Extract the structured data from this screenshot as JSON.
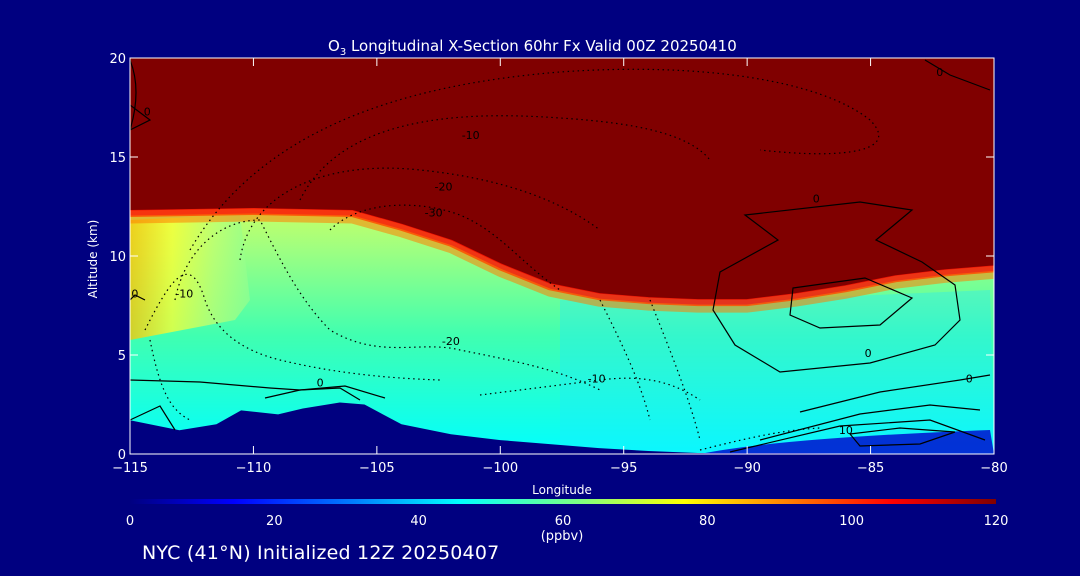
{
  "chart_data": {
    "type": "heatmap",
    "title_main": "O",
    "title_sub": "3",
    "title_rest": " Longitudinal X-Section 60hr  Fx Valid 00Z 20250410",
    "xlabel": "Longitude",
    "ylabel": "Altitude (km)",
    "xlim": [
      -115,
      -80
    ],
    "ylim": [
      0,
      20
    ],
    "x_ticks": [
      -115,
      -110,
      -105,
      -100,
      -95,
      -90,
      -85,
      -80
    ],
    "x_tick_labels": [
      "−115",
      "−110",
      "−105",
      "−100",
      "−95",
      "−90",
      "−85",
      "−80"
    ],
    "y_ticks": [
      0,
      5,
      10,
      15,
      20
    ],
    "y_tick_labels": [
      "0",
      "5",
      "10",
      "15",
      "20"
    ],
    "colorbar": {
      "min": 0,
      "max": 120,
      "ticks": [
        0,
        20,
        40,
        60,
        80,
        100,
        120
      ],
      "tick_labels": [
        "0",
        "20",
        "40",
        "60",
        "80",
        "100",
        "120"
      ],
      "unit": "(ppbv)",
      "colors": [
        "#000080",
        "#0000ff",
        "#0080ff",
        "#00ffff",
        "#80ff80",
        "#ffff00",
        "#ff8000",
        "#ff0000",
        "#800000"
      ]
    },
    "tropopause_km": [
      [
        -115,
        12.3
      ],
      [
        -110,
        12.4
      ],
      [
        -106,
        12.3
      ],
      [
        -104,
        11.6
      ],
      [
        -102,
        10.8
      ],
      [
        -100,
        9.6
      ],
      [
        -98,
        8.6
      ],
      [
        -96,
        8.1
      ],
      [
        -94,
        7.9
      ],
      [
        -92,
        7.8
      ],
      [
        -90,
        7.8
      ],
      [
        -88,
        8.1
      ],
      [
        -86,
        8.5
      ],
      [
        -84,
        9.0
      ],
      [
        -82,
        9.3
      ],
      [
        -80,
        9.5
      ]
    ],
    "terrain_km": [
      [
        -115,
        1.7
      ],
      [
        -113,
        1.2
      ],
      [
        -111.5,
        1.5
      ],
      [
        -110.5,
        2.2
      ],
      [
        -109,
        2.0
      ],
      [
        -108,
        2.3
      ],
      [
        -106.5,
        2.6
      ],
      [
        -105.5,
        2.5
      ],
      [
        -104,
        1.5
      ],
      [
        -102,
        1.0
      ],
      [
        -100,
        0.7
      ],
      [
        -98,
        0.5
      ],
      [
        -96,
        0.3
      ],
      [
        -94,
        0.15
      ],
      [
        -92,
        0.05
      ],
      [
        -88,
        0.05
      ],
      [
        -84,
        0.0
      ],
      [
        -80,
        0.0
      ]
    ],
    "contour_labels": [
      {
        "text": "0",
        "lon": -114.3,
        "alt": 17.1
      },
      {
        "text": "-10",
        "lon": -101.2,
        "alt": 15.9
      },
      {
        "text": "-20",
        "lon": -102.3,
        "alt": 13.3
      },
      {
        "text": "-30",
        "lon": -102.7,
        "alt": 12.0
      },
      {
        "text": "0",
        "lon": -87.2,
        "alt": 12.7
      },
      {
        "text": "0",
        "lon": -82.2,
        "alt": 19.1
      },
      {
        "text": "-10",
        "lon": -112.8,
        "alt": 7.9
      },
      {
        "text": "0",
        "lon": -114.8,
        "alt": 7.9
      },
      {
        "text": "-20",
        "lon": -102.0,
        "alt": 5.5
      },
      {
        "text": "0",
        "lon": -107.3,
        "alt": 3.4
      },
      {
        "text": "-10",
        "lon": -96.1,
        "alt": 3.6
      },
      {
        "text": "0",
        "lon": -85.1,
        "alt": 4.9
      },
      {
        "text": "0",
        "lon": -81.0,
        "alt": 3.6
      },
      {
        "text": "10",
        "lon": -86.0,
        "alt": 1.0
      }
    ]
  },
  "footer": "NYC (41°N) Initialized 12Z 20250407"
}
